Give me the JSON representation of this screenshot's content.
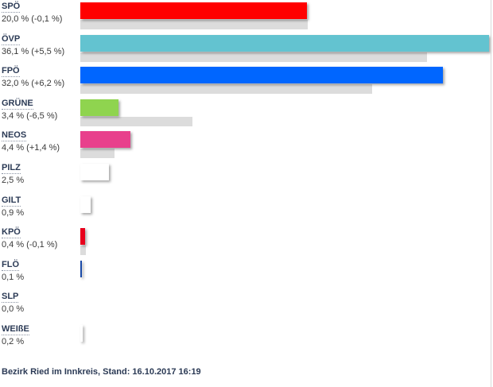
{
  "chart_data": {
    "type": "bar",
    "orientation": "horizontal",
    "categories": [
      "SPÖ",
      "ÖVP",
      "FPÖ",
      "GRÜNE",
      "NEOS",
      "PILZ",
      "GILT",
      "KPÖ",
      "FLÖ",
      "SLP",
      "WEIßE"
    ],
    "series": [
      {
        "values": [
          20.0,
          36.1,
          32.0,
          3.4,
          4.4,
          2.5,
          0.9,
          0.4,
          0.1,
          0.0,
          0.2
        ]
      },
      {
        "values": [
          20.1,
          30.6,
          25.8,
          9.9,
          3.0,
          null,
          null,
          0.5,
          null,
          null,
          null
        ]
      }
    ],
    "labels": [
      "20,0 % (-0,1 %)",
      "36,1 % (+5,5 %)",
      "32,0 % (+6,2 %)",
      "3,4 % (-6,5 %)",
      "4,4 % (+1,4 %)",
      "2,5 %",
      "0,9 %",
      "0,4 % (-0,1 %)",
      "0,1 %",
      "0,0 %",
      "0,2 %"
    ],
    "colors": [
      "#ff0000",
      "#63c3d0",
      "#0066ff",
      "#8fd44f",
      "#e8408c",
      "#ffffff",
      "#ffffff",
      "#e8001c",
      "#1a4aa8",
      "#ffffff",
      "#ffffff"
    ],
    "previous_color": "#dcdcdc",
    "xlim": [
      0,
      36.1
    ]
  },
  "footer": "Bezirk Ried im Innkreis, Stand: 16.10.2017 16:19"
}
